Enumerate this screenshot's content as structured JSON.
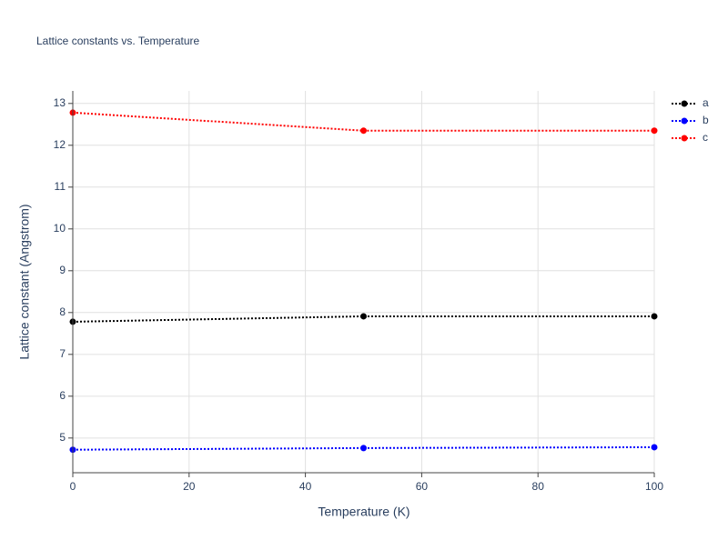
{
  "chart_data": {
    "type": "line",
    "title": "Lattice constants vs. Temperature",
    "x_label": "Temperature (K)",
    "y_label": "Lattice constant (Angstrom)",
    "x": [
      0,
      50,
      100
    ],
    "series": [
      {
        "name": "a",
        "color": "#000000",
        "values": [
          7.78,
          7.91,
          7.91
        ]
      },
      {
        "name": "b",
        "color": "#0000ff",
        "values": [
          4.72,
          4.76,
          4.78
        ]
      },
      {
        "name": "c",
        "color": "#ff0000",
        "values": [
          12.78,
          12.35,
          12.35
        ]
      }
    ],
    "xlim": [
      0,
      100
    ],
    "xticks": [
      0,
      20,
      40,
      60,
      80,
      100
    ],
    "ylim": [
      4.17,
      13.3
    ],
    "yticks": [
      5,
      6,
      7,
      8,
      9,
      10,
      11,
      12,
      13
    ],
    "grid": true,
    "legend": "top-right"
  }
}
